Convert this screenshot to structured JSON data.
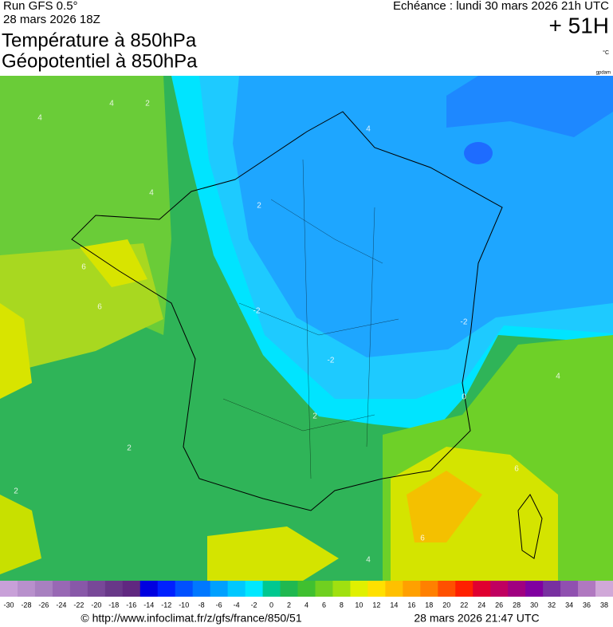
{
  "header": {
    "run": "Run GFS 0.5°",
    "run_time": "28 mars 2026 18Z",
    "valid": "Echéance : lundi 30 mars 2026 21h UTC",
    "lead": "+ 51H",
    "title_1": "Température à 850hPa",
    "title_2": "Géopotentiel à 850hPa",
    "unit": "°C",
    "geo_unit": "gpdam"
  },
  "map": {
    "contour_labels": [
      "4",
      "2",
      "4",
      "4",
      "6",
      "6",
      "2",
      "-2",
      "4",
      "-2",
      "-2",
      "0",
      "2",
      "2",
      "4",
      "6",
      "6",
      "4",
      "2"
    ]
  },
  "legend": {
    "labels": [
      -30,
      -28,
      -26,
      -24,
      -22,
      -20,
      -18,
      -16,
      -14,
      -12,
      -10,
      -8,
      -6,
      -4,
      -2,
      0,
      2,
      4,
      6,
      8,
      10,
      12,
      14,
      16,
      18,
      20,
      22,
      24,
      26,
      28,
      30,
      32,
      34,
      36,
      38
    ],
    "colors": [
      "#c8a0d8",
      "#b890cc",
      "#a880c0",
      "#9868b4",
      "#8858a8",
      "#784898",
      "#683888",
      "#602880",
      "#0000e0",
      "#0020ff",
      "#0050ff",
      "#0078ff",
      "#00a0ff",
      "#00c8ff",
      "#00e8ff",
      "#00c890",
      "#20b850",
      "#40c030",
      "#70d020",
      "#a0e010",
      "#e0f000",
      "#ffe000",
      "#ffc000",
      "#ffa000",
      "#ff8000",
      "#ff5000",
      "#ff2000",
      "#e00030",
      "#c00060",
      "#a00080",
      "#8000a0",
      "#7830a0",
      "#9050b0",
      "#b078c0",
      "#d0a8d8"
    ]
  },
  "footer": {
    "source": "© http://www.infoclimat.fr/z/gfs/france/850/51",
    "generated": "28 mars 2026 21:47 UTC"
  }
}
